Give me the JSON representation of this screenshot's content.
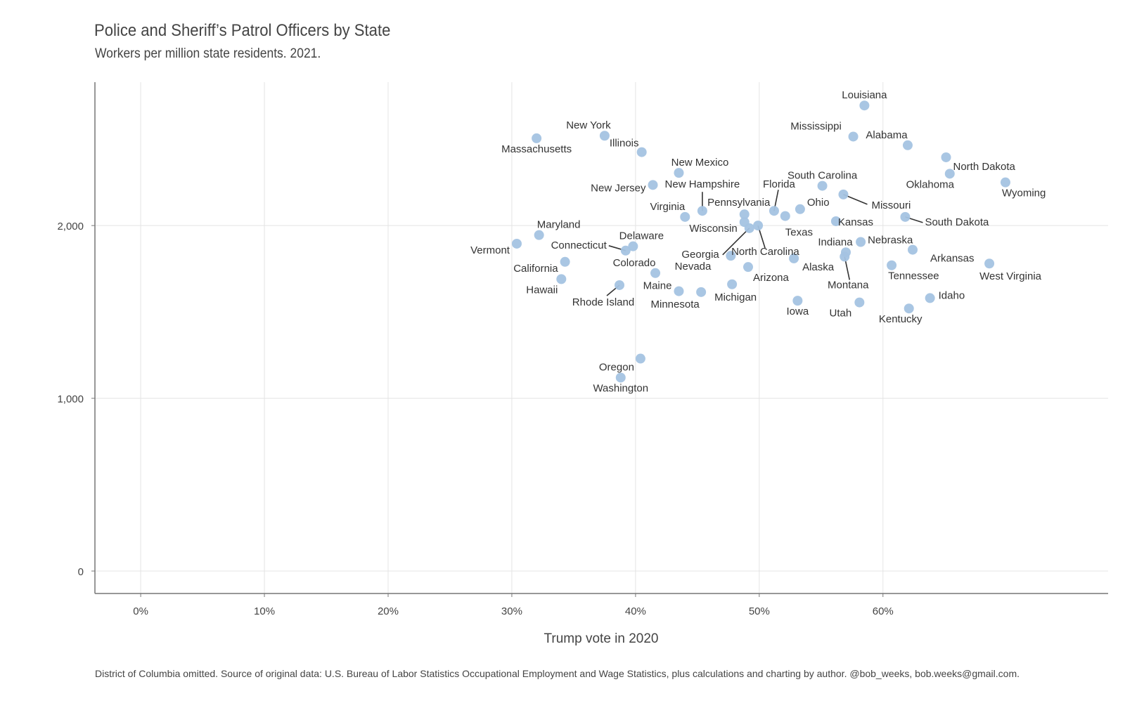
{
  "chart_data": {
    "type": "scatter",
    "title": "Police and Sheriff’s Patrol Officers by State",
    "subtitle": "Workers per million state residents. 2021.",
    "xlabel": "Trump vote in 2020",
    "ylabel": "",
    "caption": "District of Columbia omitted. Source of original data: U.S. Bureau of Labor Statistics Occupational Employment and Wage Statistics, plus calculations and charting by author. @bob_weeks, bob.weeks@gmail.com.",
    "xlim": [
      -0.037,
      0.782
    ],
    "ylim": [
      -130,
      2830
    ],
    "xticks": [
      0,
      0.1,
      0.2,
      0.3,
      0.4,
      0.5,
      0.6
    ],
    "xtick_labels": [
      "0%",
      "10%",
      "20%",
      "30%",
      "40%",
      "50%",
      "60%"
    ],
    "yticks": [
      0,
      1000,
      2000
    ],
    "ytick_labels": [
      "0",
      "1,000",
      "2,000"
    ],
    "grid": true,
    "point_color": "#a4c3e2",
    "points": [
      {
        "label": "Louisiana",
        "x": 0.585,
        "y": 2695
      },
      {
        "label": "Mississippi",
        "x": 0.576,
        "y": 2515
      },
      {
        "label": "Alabama",
        "x": 0.62,
        "y": 2465
      },
      {
        "label": "North Dakota",
        "x": 0.651,
        "y": 2395
      },
      {
        "label": "Oklahoma",
        "x": 0.654,
        "y": 2300
      },
      {
        "label": "Wyoming",
        "x": 0.699,
        "y": 2250
      },
      {
        "label": "South Carolina",
        "x": 0.551,
        "y": 2230
      },
      {
        "label": "Missouri",
        "x": 0.568,
        "y": 2180
      },
      {
        "label": "Ohio",
        "x": 0.533,
        "y": 2095
      },
      {
        "label": "Florida",
        "x": 0.512,
        "y": 2085
      },
      {
        "label": "Texas",
        "x": 0.521,
        "y": 2055
      },
      {
        "label": "Kansas",
        "x": 0.562,
        "y": 2025
      },
      {
        "label": "South Dakota",
        "x": 0.618,
        "y": 2050
      },
      {
        "label": "Pennsylvania",
        "x": 0.488,
        "y": 2065
      },
      {
        "label": "Wisconsin",
        "x": 0.488,
        "y": 2020
      },
      {
        "label": "Georgia",
        "x": 0.492,
        "y": 1985
      },
      {
        "label": "North Carolina",
        "x": 0.499,
        "y": 2000
      },
      {
        "label": "New Hampshire",
        "x": 0.454,
        "y": 2085
      },
      {
        "label": "Virginia",
        "x": 0.44,
        "y": 2050
      },
      {
        "label": "New Mexico",
        "x": 0.435,
        "y": 2305
      },
      {
        "label": "New Jersey",
        "x": 0.414,
        "y": 2235
      },
      {
        "label": "Illinois",
        "x": 0.405,
        "y": 2425
      },
      {
        "label": "New York",
        "x": 0.375,
        "y": 2520
      },
      {
        "label": "Massachusetts",
        "x": 0.32,
        "y": 2505
      },
      {
        "label": "Maryland",
        "x": 0.322,
        "y": 1945
      },
      {
        "label": "Vermont",
        "x": 0.304,
        "y": 1895
      },
      {
        "label": "Delaware",
        "x": 0.398,
        "y": 1880
      },
      {
        "label": "Connecticut",
        "x": 0.392,
        "y": 1855
      },
      {
        "label": "California",
        "x": 0.343,
        "y": 1790
      },
      {
        "label": "Hawaii",
        "x": 0.34,
        "y": 1690
      },
      {
        "label": "Rhode Island",
        "x": 0.387,
        "y": 1655
      },
      {
        "label": "Colorado",
        "x": 0.416,
        "y": 1725
      },
      {
        "label": "Maine",
        "x": 0.435,
        "y": 1620
      },
      {
        "label": "Minnesota",
        "x": 0.453,
        "y": 1615
      },
      {
        "label": "Nevada",
        "x": 0.477,
        "y": 1825
      },
      {
        "label": "Arizona",
        "x": 0.491,
        "y": 1760
      },
      {
        "label": "Michigan",
        "x": 0.478,
        "y": 1660
      },
      {
        "label": "Alaska",
        "x": 0.528,
        "y": 1810
      },
      {
        "label": "Iowa",
        "x": 0.531,
        "y": 1565
      },
      {
        "label": "Indiana",
        "x": 0.57,
        "y": 1845
      },
      {
        "label": "Montana",
        "x": 0.569,
        "y": 1820
      },
      {
        "label": "Nebraska",
        "x": 0.582,
        "y": 1905
      },
      {
        "label": "Utah",
        "x": 0.581,
        "y": 1555
      },
      {
        "label": "Tennessee",
        "x": 0.607,
        "y": 1770
      },
      {
        "label": "Arkansas",
        "x": 0.624,
        "y": 1860
      },
      {
        "label": "West Virginia",
        "x": 0.686,
        "y": 1780
      },
      {
        "label": "Idaho",
        "x": 0.638,
        "y": 1580
      },
      {
        "label": "Kentucky",
        "x": 0.621,
        "y": 1520
      },
      {
        "label": "Oregon",
        "x": 0.404,
        "y": 1230
      },
      {
        "label": "Washington",
        "x": 0.388,
        "y": 1120
      }
    ]
  }
}
